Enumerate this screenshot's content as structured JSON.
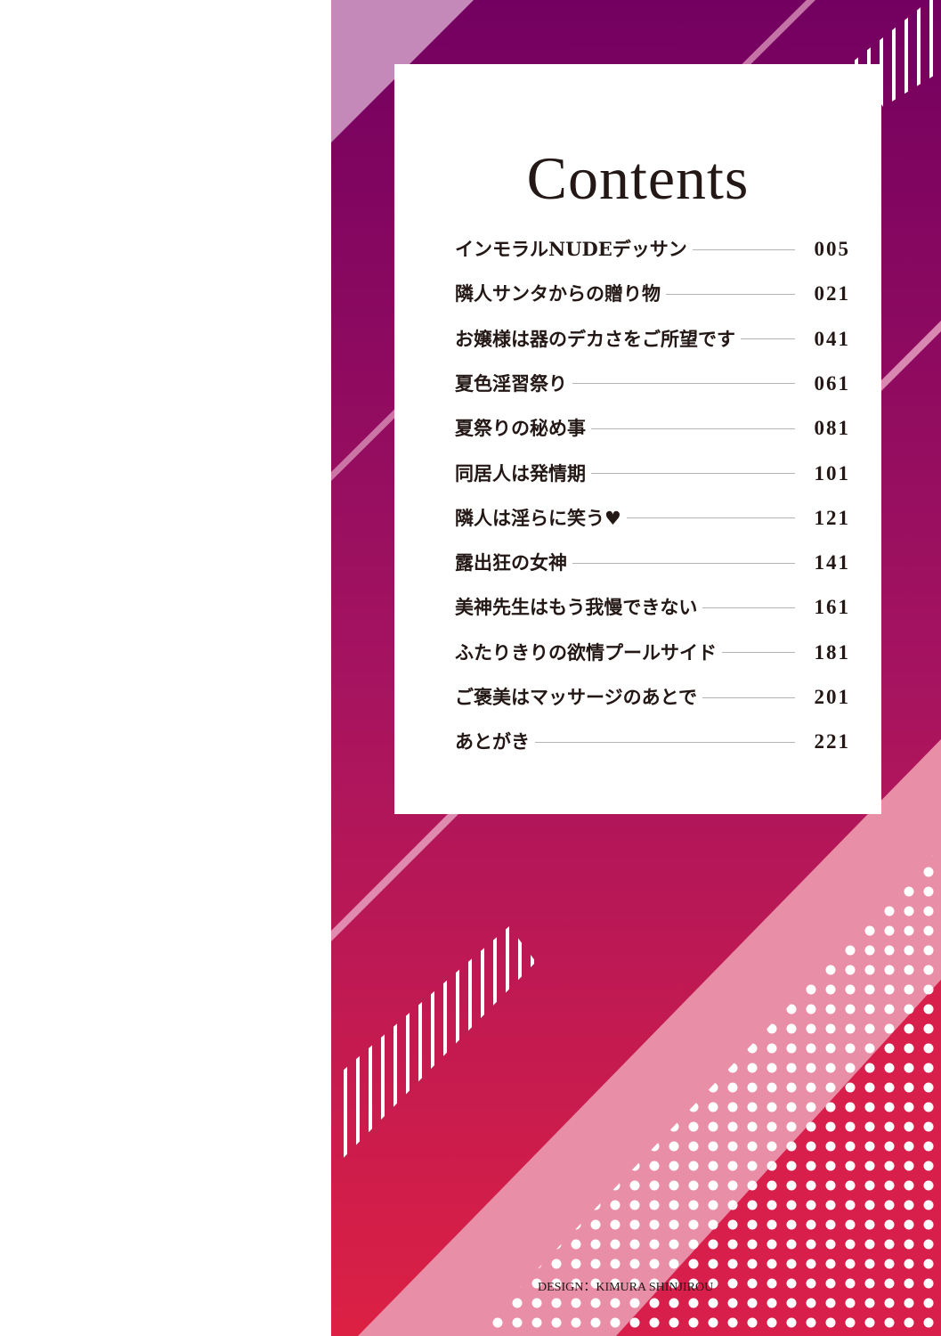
{
  "title": "Contents",
  "entries": [
    {
      "title": "インモラルNUDEデッサン",
      "page": "005"
    },
    {
      "title": "隣人サンタからの贈り物",
      "page": "021"
    },
    {
      "title": "お嬢様は器のデカさをご所望です",
      "page": "041"
    },
    {
      "title": "夏色淫習祭り",
      "page": "061"
    },
    {
      "title": "夏祭りの秘め事",
      "page": "081"
    },
    {
      "title": "同居人は発情期",
      "page": "101"
    },
    {
      "title": "隣人は淫らに笑う♥",
      "page": "121"
    },
    {
      "title": "露出狂の女神",
      "page": "141"
    },
    {
      "title": "美神先生はもう我慢できない",
      "page": "161"
    },
    {
      "title": "ふたりきりの欲情プールサイド",
      "page": "181"
    },
    {
      "title": "ご褒美はマッサージのあとで",
      "page": "201"
    },
    {
      "title": "あとがき",
      "page": "221"
    }
  ],
  "credit": "DESIGN：KIMURA SHINJIROU",
  "colors": {
    "top": "#730060",
    "bottom": "#dc2044",
    "pink_band": "#e68aa8",
    "text": "#231815"
  }
}
